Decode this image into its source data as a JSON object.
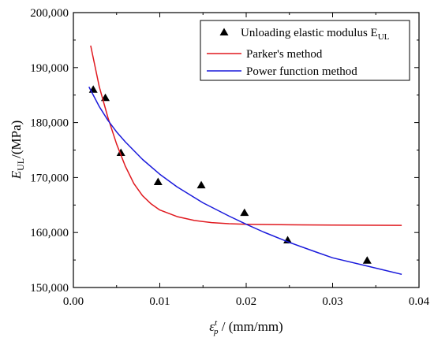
{
  "chart_data": {
    "type": "scatter",
    "xlabel": {
      "symbol": "ε",
      "sup": "t",
      "sub": "p",
      "unit": " / (mm/mm)"
    },
    "ylabel": {
      "symbol": "E",
      "sub": "UL",
      "unit": "/(MPa)"
    },
    "xlim": [
      0.0,
      0.04
    ],
    "ylim": [
      150000,
      200000
    ],
    "x_ticks": [
      0.0,
      0.01,
      0.02,
      0.03,
      0.04
    ],
    "x_tick_labels": [
      "0.00",
      "0.01",
      "0.02",
      "0.03",
      "0.04"
    ],
    "y_ticks": [
      150000,
      160000,
      170000,
      180000,
      190000,
      200000
    ],
    "y_tick_labels": [
      "150,000",
      "160,000",
      "170,000",
      "180,000",
      "190,000",
      "200,000"
    ],
    "grid": false,
    "legend_position": "top-right",
    "series": [
      {
        "name": "Unloading elastic modulus E",
        "name_sub": "UL",
        "kind": "scatter",
        "marker": "triangle",
        "color": "#000000",
        "x": [
          0.0023,
          0.0037,
          0.0055,
          0.0098,
          0.0148,
          0.0198,
          0.0248,
          0.034
        ],
        "y": [
          186000,
          184500,
          174500,
          169200,
          168600,
          163600,
          158600,
          154900
        ]
      },
      {
        "name": "Parker's method",
        "kind": "line",
        "color": "#e0191f",
        "x": [
          0.002,
          0.003,
          0.004,
          0.005,
          0.006,
          0.007,
          0.008,
          0.009,
          0.01,
          0.012,
          0.014,
          0.016,
          0.018,
          0.02,
          0.025,
          0.03,
          0.038
        ],
        "y": [
          194000,
          186500,
          180900,
          176100,
          172100,
          168900,
          166700,
          165200,
          164100,
          162900,
          162200,
          161800,
          161600,
          161500,
          161400,
          161350,
          161300
        ]
      },
      {
        "name": "Power function method",
        "kind": "line",
        "color": "#1a1adb",
        "x": [
          0.0018,
          0.003,
          0.004,
          0.005,
          0.006,
          0.008,
          0.01,
          0.012,
          0.015,
          0.018,
          0.02,
          0.022,
          0.025,
          0.028,
          0.03,
          0.034,
          0.038
        ],
        "y": [
          186500,
          182900,
          180400,
          178300,
          176500,
          173300,
          170600,
          168300,
          165400,
          163000,
          161500,
          160100,
          158200,
          156500,
          155400,
          153900,
          152400
        ]
      }
    ]
  }
}
